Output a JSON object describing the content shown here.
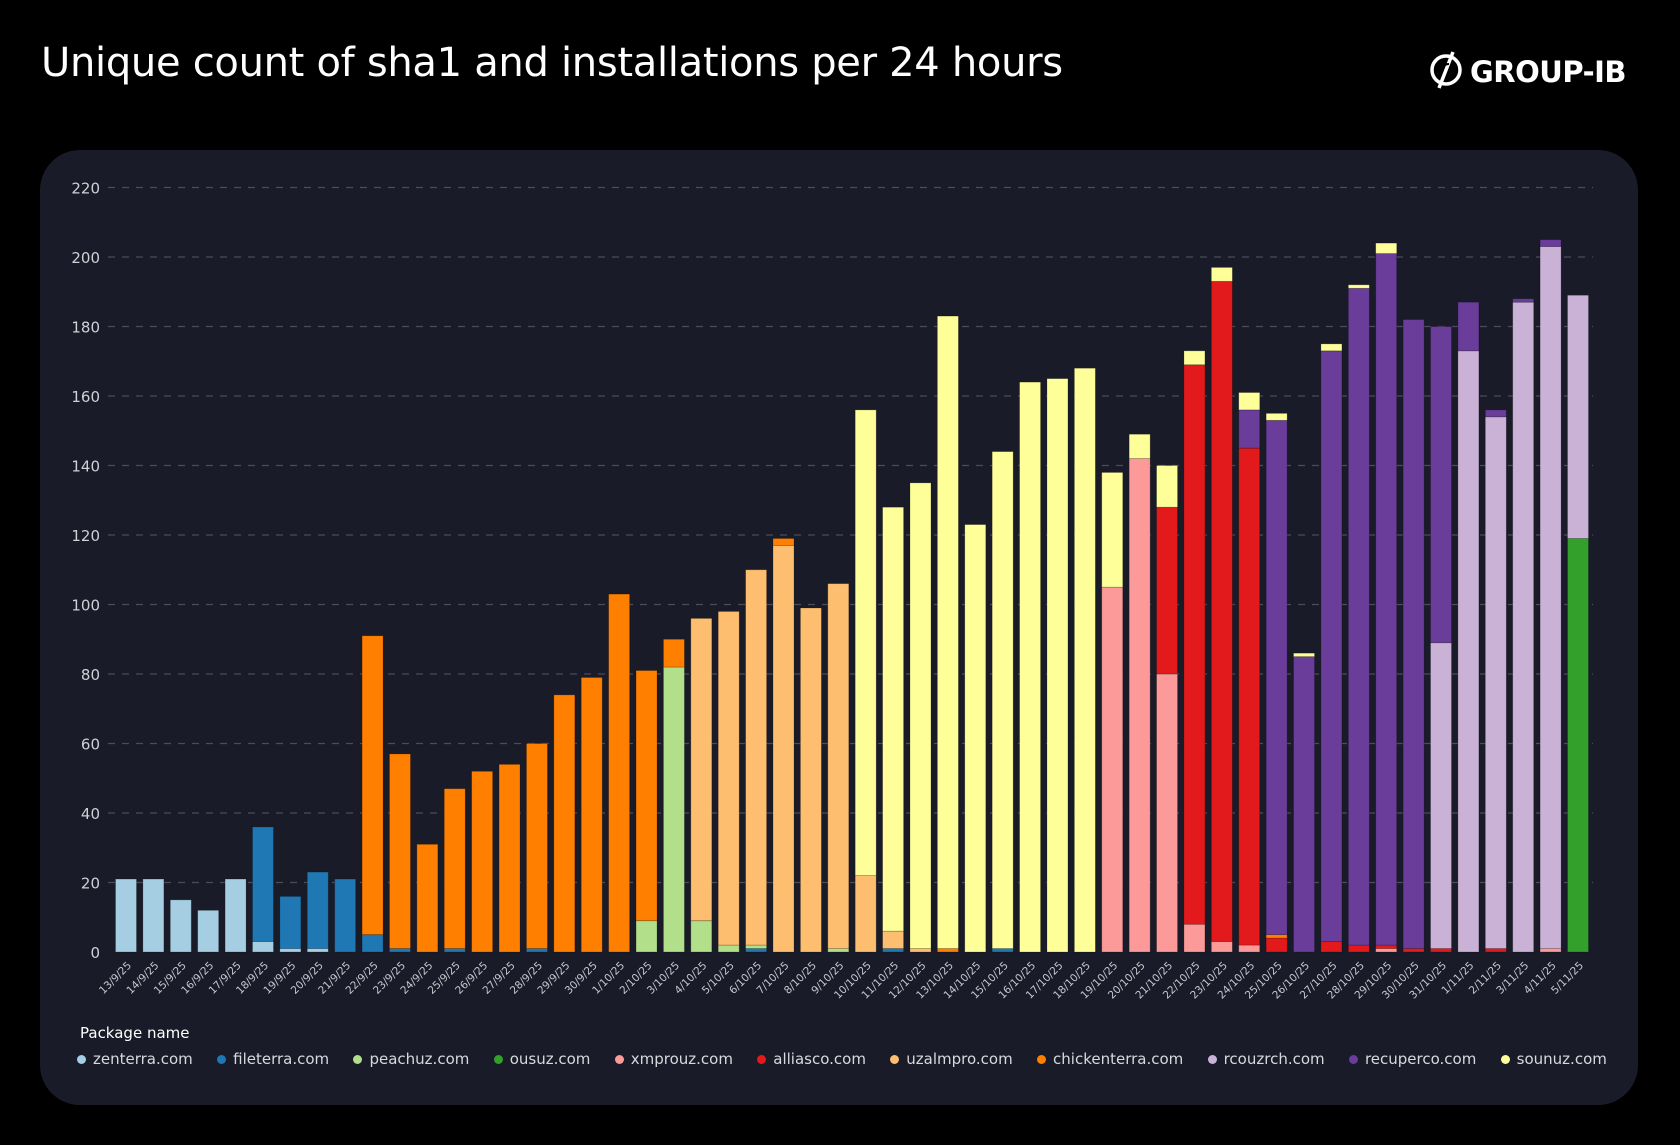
{
  "title": "Unique count of sha1 and installations per 24 hours",
  "logo": {
    "text": "GROUP-IB",
    "icon": "group-ib-logo-icon"
  },
  "chart_data": {
    "type": "bar",
    "stacked": true,
    "title": "Unique count of sha1 and installations per 24 hours",
    "xlabel": "",
    "ylabel": "",
    "ylim": [
      0,
      220
    ],
    "yticks": [
      0,
      20,
      40,
      60,
      80,
      100,
      120,
      140,
      160,
      180,
      200,
      220
    ],
    "grid": "horizontal dashed",
    "legend_title": "Package name",
    "legend_position": "bottom",
    "categories": [
      "13/9/25",
      "14/9/25",
      "15/9/25",
      "16/9/25",
      "17/9/25",
      "18/9/25",
      "19/9/25",
      "20/9/25",
      "21/9/25",
      "22/9/25",
      "23/9/25",
      "24/9/25",
      "25/9/25",
      "26/9/25",
      "27/9/25",
      "28/9/25",
      "29/9/25",
      "30/9/25",
      "1/10/25",
      "2/10/25",
      "3/10/25",
      "4/10/25",
      "5/10/25",
      "6/10/25",
      "7/10/25",
      "8/10/25",
      "9/10/25",
      "10/10/25",
      "11/10/25",
      "12/10/25",
      "13/10/25",
      "14/10/25",
      "15/10/25",
      "16/10/25",
      "17/10/25",
      "18/10/25",
      "19/10/25",
      "20/10/25",
      "21/10/25",
      "22/10/25",
      "23/10/25",
      "24/10/25",
      "25/10/25",
      "26/10/25",
      "27/10/25",
      "28/10/25",
      "29/10/25",
      "30/10/25",
      "31/10/25",
      "1/11/25",
      "2/11/25",
      "3/11/25",
      "4/11/25",
      "5/11/25"
    ],
    "series": [
      {
        "name": "zenterra.com",
        "color": "#a6cee3",
        "values": [
          21,
          21,
          15,
          12,
          21,
          3,
          1,
          1,
          0,
          0,
          0,
          0,
          0,
          0,
          0,
          0,
          0,
          0,
          0,
          0,
          0,
          0,
          0,
          0,
          0,
          0,
          0,
          0,
          0,
          0,
          0,
          0,
          0,
          0,
          0,
          0,
          0,
          0,
          0,
          0,
          0,
          0,
          0,
          0,
          0,
          0,
          0,
          0,
          0,
          0,
          0,
          0,
          0,
          0
        ]
      },
      {
        "name": "fileterra.com",
        "color": "#1f78b4",
        "values": [
          0,
          0,
          0,
          0,
          0,
          33,
          15,
          22,
          21,
          5,
          1,
          0,
          1,
          0,
          0,
          1,
          0,
          0,
          0,
          0,
          0,
          0,
          0,
          1,
          0,
          0,
          0,
          0,
          1,
          0,
          0,
          0,
          1,
          0,
          0,
          0,
          0,
          0,
          0,
          0,
          0,
          0,
          0,
          0,
          0,
          0,
          0,
          0,
          0,
          0,
          0,
          0,
          0,
          0
        ]
      },
      {
        "name": "peachuz.com",
        "color": "#b2df8a",
        "values": [
          0,
          0,
          0,
          0,
          0,
          0,
          0,
          0,
          0,
          0,
          0,
          0,
          0,
          0,
          0,
          0,
          0,
          0,
          0,
          9,
          82,
          9,
          2,
          1,
          0,
          0,
          1,
          0,
          0,
          0,
          0,
          0,
          0,
          0,
          0,
          0,
          0,
          0,
          0,
          0,
          0,
          0,
          0,
          0,
          0,
          0,
          0,
          0,
          0,
          0,
          0,
          0,
          0,
          0
        ]
      },
      {
        "name": "ousuz.com",
        "color": "#33a02c",
        "values": [
          0,
          0,
          0,
          0,
          0,
          0,
          0,
          0,
          0,
          0,
          0,
          0,
          0,
          0,
          0,
          0,
          0,
          0,
          0,
          0,
          0,
          0,
          0,
          0,
          0,
          0,
          0,
          0,
          0,
          0,
          0,
          0,
          0,
          0,
          0,
          0,
          0,
          0,
          0,
          0,
          0,
          0,
          0,
          0,
          0,
          0,
          0,
          0,
          0,
          0,
          0,
          0,
          0,
          119
        ]
      },
      {
        "name": "xmprouz.com",
        "color": "#fb9a99",
        "values": [
          0,
          0,
          0,
          0,
          0,
          0,
          0,
          0,
          0,
          0,
          0,
          0,
          0,
          0,
          0,
          0,
          0,
          0,
          0,
          0,
          0,
          0,
          0,
          0,
          0,
          0,
          0,
          0,
          0,
          0,
          0,
          0,
          0,
          0,
          0,
          0,
          105,
          142,
          80,
          8,
          3,
          2,
          0,
          0,
          0,
          0,
          1,
          0,
          0,
          0,
          0,
          0,
          1,
          0
        ]
      },
      {
        "name": "alliasco.com",
        "color": "#e31a1c",
        "values": [
          0,
          0,
          0,
          0,
          0,
          0,
          0,
          0,
          0,
          0,
          0,
          0,
          0,
          0,
          0,
          0,
          0,
          0,
          0,
          0,
          0,
          0,
          0,
          0,
          0,
          0,
          0,
          0,
          0,
          0,
          0,
          0,
          0,
          0,
          0,
          0,
          0,
          0,
          48,
          161,
          190,
          143,
          4,
          0,
          3,
          2,
          1,
          1,
          1,
          0,
          1,
          0,
          0,
          0
        ]
      },
      {
        "name": "uzalmpro.com",
        "color": "#fdbf6f",
        "values": [
          0,
          0,
          0,
          0,
          0,
          0,
          0,
          0,
          0,
          0,
          0,
          0,
          0,
          0,
          0,
          0,
          0,
          0,
          0,
          0,
          0,
          87,
          96,
          108,
          117,
          99,
          105,
          22,
          5,
          1,
          0,
          0,
          0,
          0,
          0,
          0,
          0,
          0,
          0,
          0,
          0,
          0,
          0,
          0,
          0,
          0,
          0,
          0,
          0,
          0,
          0,
          0,
          0,
          0
        ]
      },
      {
        "name": "chickenterra.com",
        "color": "#ff7f00",
        "values": [
          0,
          0,
          0,
          0,
          0,
          0,
          0,
          0,
          0,
          86,
          56,
          31,
          46,
          52,
          54,
          59,
          74,
          79,
          103,
          72,
          8,
          0,
          0,
          0,
          2,
          0,
          0,
          0,
          0,
          0,
          1,
          0,
          0,
          0,
          0,
          0,
          0,
          0,
          0,
          0,
          0,
          0,
          1,
          0,
          0,
          0,
          0,
          0,
          0,
          0,
          0,
          0,
          0,
          0
        ]
      },
      {
        "name": "rcouzrch.com",
        "color": "#cab2d6",
        "values": [
          0,
          0,
          0,
          0,
          0,
          0,
          0,
          0,
          0,
          0,
          0,
          0,
          0,
          0,
          0,
          0,
          0,
          0,
          0,
          0,
          0,
          0,
          0,
          0,
          0,
          0,
          0,
          0,
          0,
          0,
          0,
          0,
          0,
          0,
          0,
          0,
          0,
          0,
          0,
          0,
          0,
          0,
          0,
          0,
          0,
          0,
          0,
          0,
          88,
          173,
          153,
          187,
          202,
          70
        ]
      },
      {
        "name": "recuperco.com",
        "color": "#6a3d9a",
        "values": [
          0,
          0,
          0,
          0,
          0,
          0,
          0,
          0,
          0,
          0,
          0,
          0,
          0,
          0,
          0,
          0,
          0,
          0,
          0,
          0,
          0,
          0,
          0,
          0,
          0,
          0,
          0,
          0,
          0,
          0,
          0,
          0,
          0,
          0,
          0,
          0,
          0,
          0,
          0,
          0,
          0,
          11,
          148,
          85,
          170,
          189,
          199,
          181,
          91,
          14,
          2,
          1,
          2,
          0
        ]
      },
      {
        "name": "sounuz.com",
        "color": "#ffff99",
        "values": [
          0,
          0,
          0,
          0,
          0,
          0,
          0,
          0,
          0,
          0,
          0,
          0,
          0,
          0,
          0,
          0,
          0,
          0,
          0,
          0,
          0,
          0,
          0,
          0,
          0,
          0,
          0,
          134,
          122,
          134,
          182,
          123,
          143,
          164,
          165,
          168,
          33,
          7,
          12,
          4,
          4,
          5,
          2,
          1,
          2,
          1,
          3,
          0,
          0,
          0,
          0,
          0,
          0,
          0
        ]
      }
    ]
  }
}
